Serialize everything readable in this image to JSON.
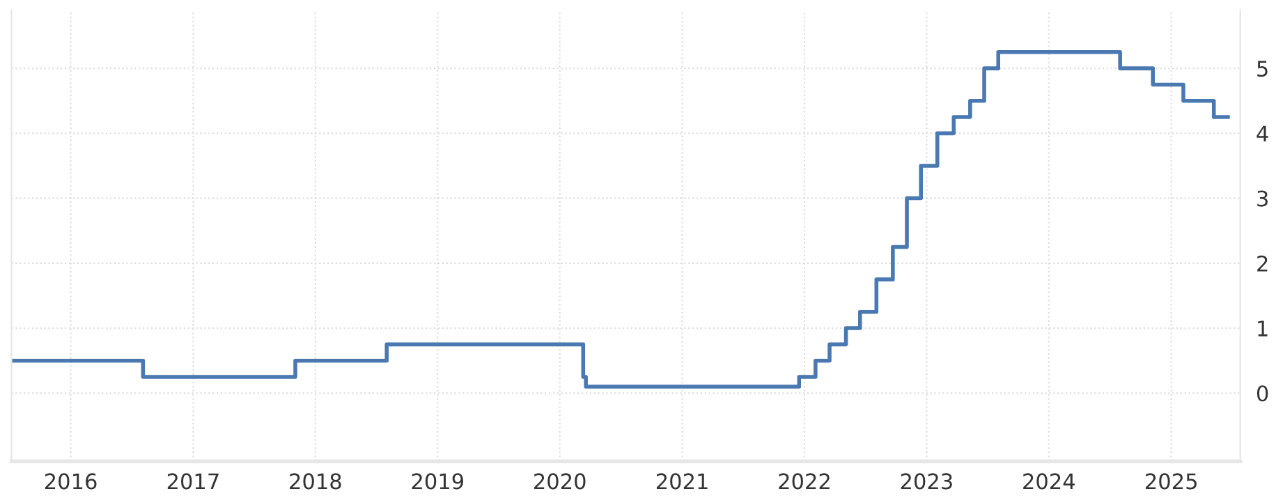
{
  "chart_data": {
    "type": "step",
    "x": [
      "2015-07-08",
      "2016-08-04",
      "2017-11-02",
      "2018-08-02",
      "2020-03-11",
      "2020-03-19",
      "2021-12-16",
      "2022-02-03",
      "2022-03-17",
      "2022-05-05",
      "2022-06-16",
      "2022-08-04",
      "2022-09-22",
      "2022-11-03",
      "2022-12-15",
      "2023-02-02",
      "2023-03-23",
      "2023-05-11",
      "2023-06-22",
      "2023-08-03",
      "2024-08-01",
      "2024-11-07",
      "2025-02-06",
      "2025-05-08",
      "2025-06-19"
    ],
    "series": [
      {
        "color": "#4a78b0",
        "values": [
          0.5,
          0.25,
          0.5,
          0.75,
          0.25,
          0.1,
          0.25,
          0.5,
          0.75,
          1.0,
          1.25,
          1.75,
          2.25,
          3.0,
          3.5,
          4.0,
          4.25,
          4.5,
          5.0,
          5.25,
          5.0,
          4.75,
          4.5,
          4.25,
          4.25
        ]
      }
    ],
    "xlim": [
      "2015-07-08",
      "2025-07-26"
    ],
    "xticks": [
      {
        "value": "2016-01-01",
        "label": "2016"
      },
      {
        "value": "2017-01-01",
        "label": "2017"
      },
      {
        "value": "2018-01-01",
        "label": "2018"
      },
      {
        "value": "2019-01-01",
        "label": "2019"
      },
      {
        "value": "2020-01-01",
        "label": "2020"
      },
      {
        "value": "2021-01-01",
        "label": "2021"
      },
      {
        "value": "2022-01-01",
        "label": "2022"
      },
      {
        "value": "2023-01-01",
        "label": "2023"
      },
      {
        "value": "2024-01-01",
        "label": "2024"
      },
      {
        "value": "2025-01-01",
        "label": "2025"
      }
    ],
    "ylim": [
      -1.05,
      5.9
    ],
    "yticks": [
      0,
      1,
      2,
      3,
      4,
      5
    ],
    "grid": true,
    "line_style": "solid",
    "marker": "none"
  }
}
